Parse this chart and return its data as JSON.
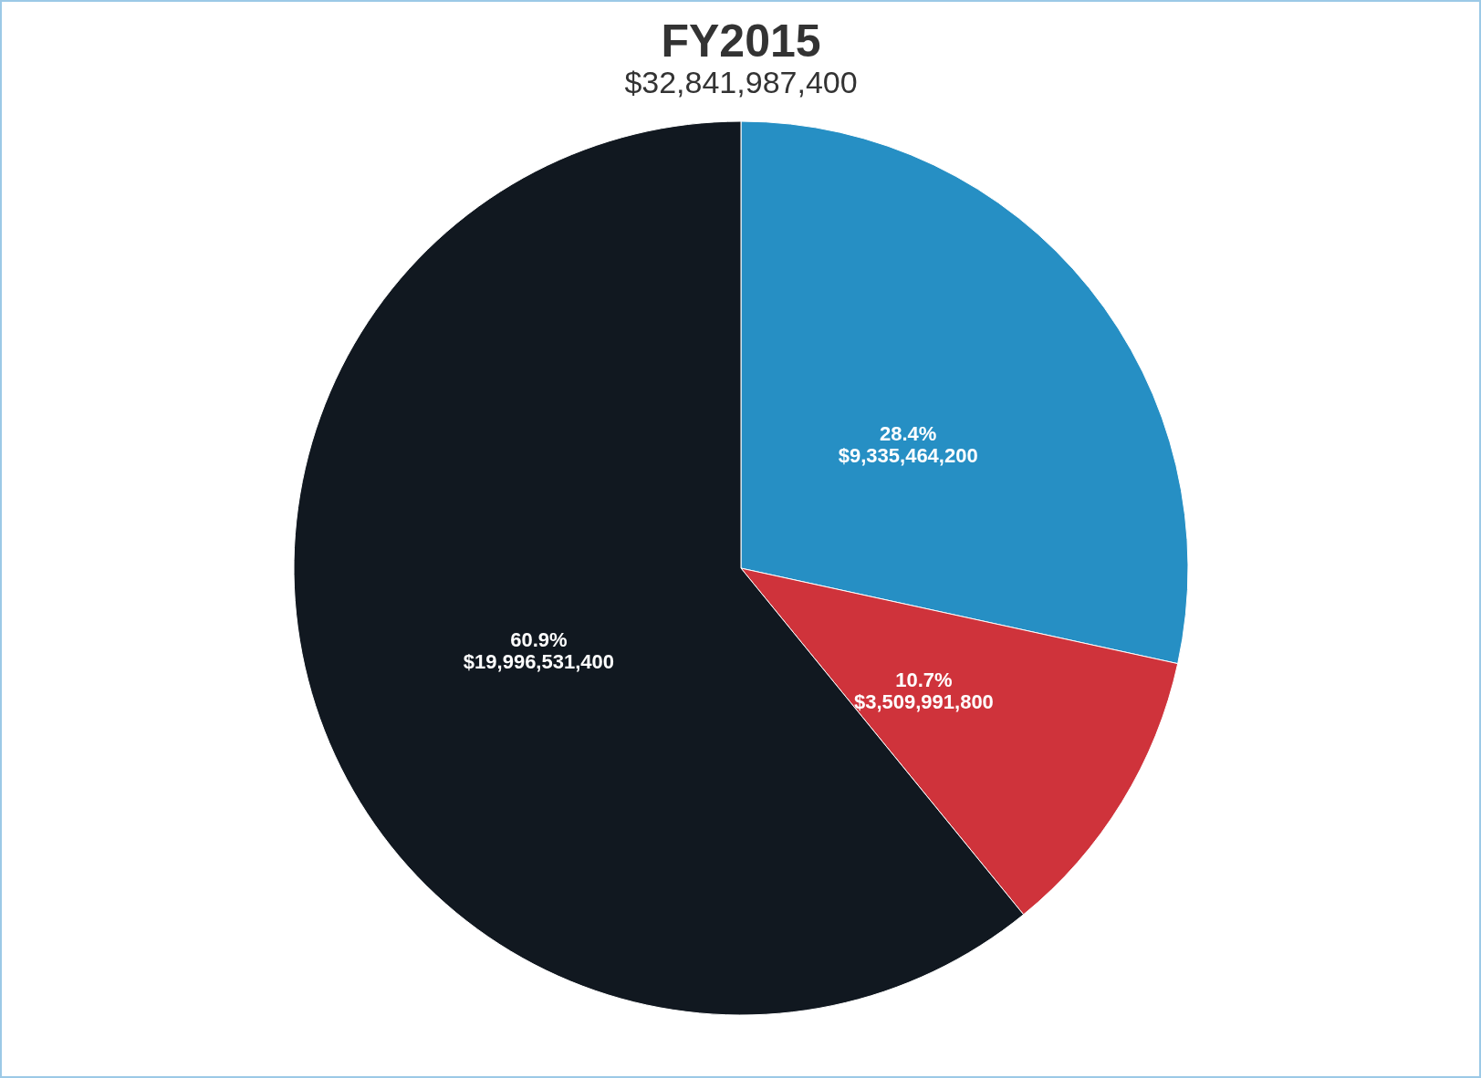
{
  "chart_data": {
    "type": "pie",
    "title": "FY2015",
    "subtitle": "$32,841,987,400",
    "categories": [
      null,
      null,
      null
    ],
    "values": [
      9335464200,
      3509991800,
      19996531400
    ],
    "colors": [
      "#268fc4",
      "#cf333b",
      "#111820"
    ],
    "value_labels": [
      "28.4%\n$9,335,464,200",
      "10.7%\n$3,509,991,800",
      "60.9%\n$19,996,531,400"
    ],
    "legend": false
  }
}
